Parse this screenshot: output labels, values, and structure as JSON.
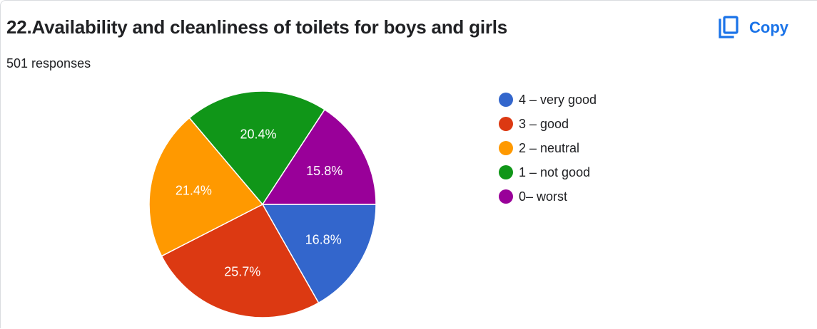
{
  "question": {
    "title": "22.Availability and cleanliness of toilets for boys and girls",
    "responses": "501 responses"
  },
  "actions": {
    "copy_label": "Copy",
    "copy_icon": "copy-icon"
  },
  "colors": {
    "accent": "#1a73e8"
  },
  "chart_data": {
    "type": "pie",
    "title": "",
    "categories": [
      "4 – very good",
      "3 – good",
      "2 – neutral",
      "1 – not good",
      "0– worst"
    ],
    "values": [
      16.8,
      25.7,
      21.4,
      20.4,
      15.8
    ],
    "labels": [
      "16.8%",
      "25.7%",
      "21.4%",
      "20.4%",
      "15.8%"
    ],
    "colors": [
      "#3366cc",
      "#dc3912",
      "#ff9900",
      "#109618",
      "#990099"
    ],
    "start_direction": "3 o'clock, clockwise",
    "legend_position": "right"
  }
}
